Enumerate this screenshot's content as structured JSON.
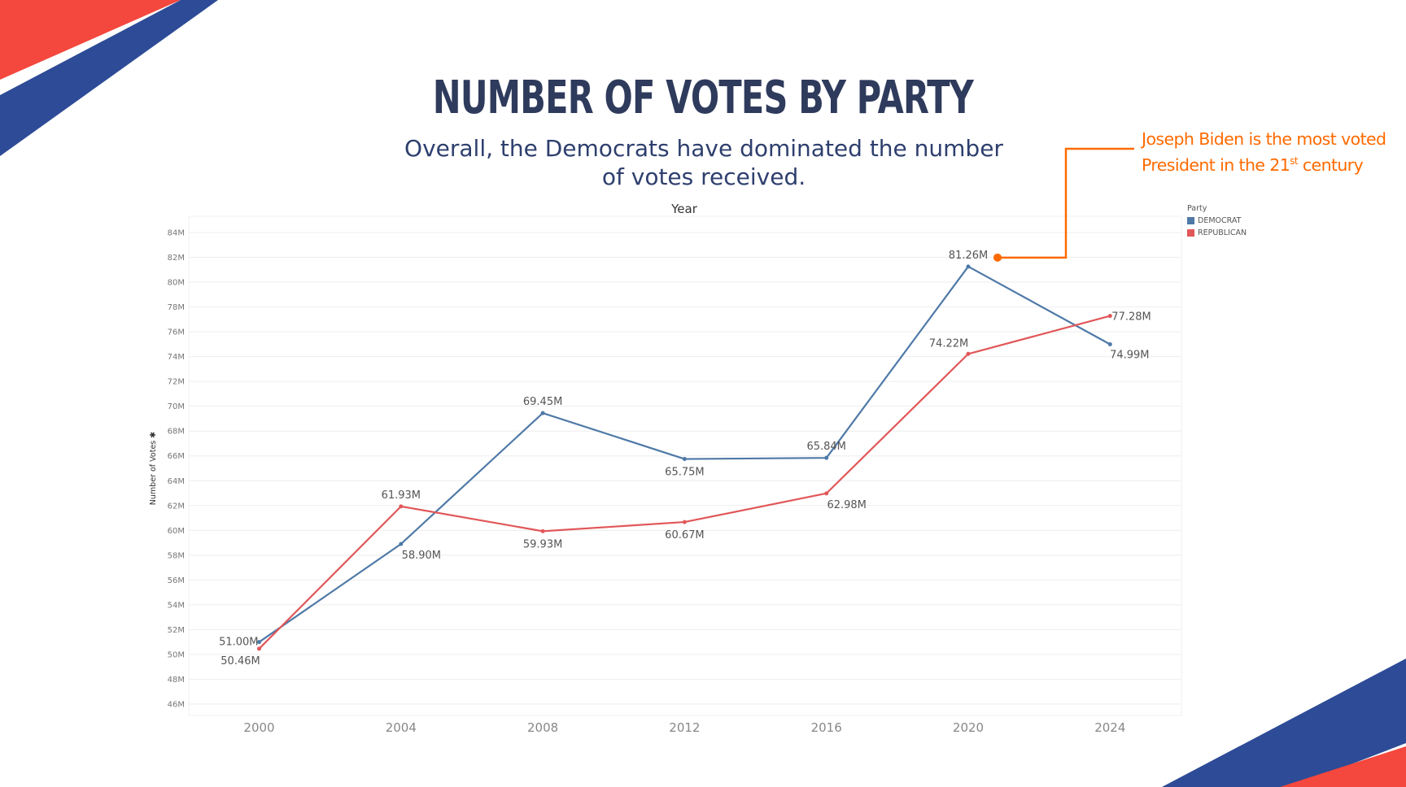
{
  "slide": {
    "title": "NUMBER OF VOTES BY PARTY",
    "subtitle": "Overall, the Democrats have dominated the number of votes received.",
    "callout": {
      "line1": "Joseph Biden is the most voted",
      "line2_prefix": "President in the 21",
      "line2_sup": "st",
      "line2_suffix": " century",
      "color": "#ff6a00"
    },
    "decoration_colors": {
      "red": "#f4473d",
      "blue": "#2d4b96"
    }
  },
  "chart_data": {
    "type": "line",
    "title": "Year",
    "xlabel": "",
    "ylabel": "Number of Votes",
    "x": [
      "2000",
      "2004",
      "2008",
      "2012",
      "2016",
      "2020",
      "2024"
    ],
    "ylim": [
      45,
      85
    ],
    "ytick_values": [
      46,
      48,
      50,
      52,
      54,
      56,
      58,
      60,
      62,
      64,
      66,
      68,
      70,
      72,
      74,
      76,
      78,
      80,
      82,
      84
    ],
    "ytick_labels": [
      "46M",
      "48M",
      "50M",
      "52M",
      "54M",
      "56M",
      "58M",
      "60M",
      "62M",
      "64M",
      "66M",
      "68M",
      "70M",
      "72M",
      "74M",
      "76M",
      "78M",
      "80M",
      "82M",
      "84M"
    ],
    "grid": true,
    "legend": {
      "title": "Party",
      "position": "top-right"
    },
    "series": [
      {
        "name": "DEMOCRAT",
        "color": "#4e79a7",
        "values": [
          51.0,
          58.9,
          69.45,
          65.75,
          65.84,
          81.26,
          74.99
        ],
        "labels": [
          "51.00M",
          "58.90M",
          "69.45M",
          "65.75M",
          "65.84M",
          "81.26M",
          "74.99M"
        ],
        "label_pos": [
          "left",
          "below",
          "above",
          "below",
          "above",
          "above",
          "below"
        ]
      },
      {
        "name": "REPUBLICAN",
        "color": "#e15759",
        "values": [
          50.46,
          61.93,
          59.93,
          60.67,
          62.98,
          74.22,
          77.28
        ],
        "labels": [
          "50.46M",
          "61.93M",
          "59.93M",
          "60.67M",
          "62.98M",
          "74.22M",
          "77.28M"
        ],
        "label_pos": [
          "below",
          "above",
          "below",
          "below",
          "below",
          "above",
          "right"
        ]
      }
    ]
  }
}
